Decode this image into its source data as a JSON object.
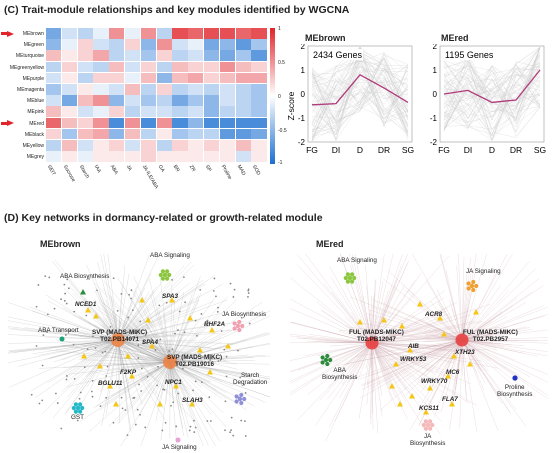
{
  "section_c": {
    "title": "(C) Trait-module relationships and key modules identified by WGCNA"
  },
  "heatmap": {
    "rows": [
      "MEbrown",
      "MEgreen",
      "MEturquoise",
      "MEgreenyellow",
      "MEpurple",
      "MEmagenta",
      "MEblue",
      "MEpink",
      "MEred",
      "MEblack",
      "MEyellow",
      "MEgrey"
    ],
    "columns": [
      "SEIT",
      "Sucrose",
      "Starch",
      "IAA",
      "ABA",
      "JA",
      "JA-ILE/ABA",
      "GA",
      "BR",
      "ZR",
      "SP",
      "Proline",
      "MAD",
      "SOD"
    ],
    "colorbar_ticks": [
      "1",
      "0.5",
      "0",
      "-0.5",
      "-1"
    ],
    "highlighted_rows": [
      "MEbrown",
      "MEred"
    ],
    "colors": {
      "positive": "#e0242a",
      "negative": "#1b6fd1",
      "neutral": "#ffffff",
      "arrow": "#e0242a"
    }
  },
  "charts": {
    "x_ticks": [
      "FG",
      "DI",
      "D",
      "DR",
      "SG"
    ],
    "y_ticks": [
      "2",
      "1",
      "0",
      "-1",
      "-2"
    ],
    "ylabel": "Z-score",
    "line_color": "#b03a7a",
    "band_color": "#c8c8c8"
  },
  "chart_data": [
    {
      "type": "line",
      "title": "MEbrown",
      "annotation": "2434 Genes",
      "x": [
        "FG",
        "DI",
        "D",
        "DR",
        "SG"
      ],
      "ylim": [
        -2,
        2
      ],
      "series": [
        {
          "values": [
            -0.45,
            -0.4,
            0.8,
            0.25,
            -0.35
          ]
        }
      ]
    },
    {
      "type": "line",
      "title": "MEred",
      "annotation": "1195 Genes",
      "x": [
        "FG",
        "DI",
        "D",
        "DR",
        "SG"
      ],
      "ylim": [
        -2,
        2
      ],
      "series": [
        {
          "values": [
            0.0,
            0.15,
            -0.35,
            -0.25,
            1.0
          ]
        }
      ]
    }
  ],
  "section_d": {
    "title": "(D) Key networks in dormancy-related or growth-related module"
  },
  "network_brown": {
    "title": "MEbrown",
    "groups": {
      "aba_signaling": "ABA Signaling",
      "aba_biosynthesis": "ABA Biosynthesis",
      "aba_transport": "ABA Transport",
      "ja_biosynthesis": "JA Biosynthesis",
      "starch_degradation": "Starch\nDegradation",
      "gst": "GST",
      "ja_signaling": "JA Signaling"
    },
    "hubs": {
      "svp1": "SVP (MADS-MIKC)\nT02.PB14071",
      "svp2": "SVP (MADS-MIKC)\nT02.PB19016"
    },
    "genes": {
      "nced1": "NCED1",
      "spa3": "SPA3",
      "rhf2a": "RHF2A",
      "spa4": "SPA4",
      "f2kp": "F2KP",
      "bglu11": "BGLU11",
      "npc1": "NPC1",
      "slah3": "SLAH3"
    },
    "colors": {
      "aba_signaling": "#8cc63f",
      "aba_biosynthesis": "#2e8b3d",
      "aba_transport": "#1aa37a",
      "ja_biosynthesis": "#f0a0b0",
      "starch": "#9090d8",
      "gst": "#22b8c8",
      "ja_signaling": "#e8a0d8",
      "hub": "#f08040",
      "gene": "#f5c518"
    }
  },
  "network_red": {
    "title": "MEred",
    "groups": {
      "aba_signaling": "ABA Signaling",
      "ja_signaling": "JA Signaling",
      "aba_biosynthesis": "ABA\nBiosynthesis",
      "proline_biosynthesis": "Proline\nBiosynthesis",
      "ja_biosynthesis": "JA\nBiosynthesis"
    },
    "hubs": {
      "ful1": "FUL (MADS-MIKC)\nT02.PB12047",
      "ful2": "FUL (MADS-MIKC)\nT02.PB2957"
    },
    "genes": {
      "acr8": "ACR8",
      "aib": "AIB",
      "xth23": "XTH23",
      "wrky53": "WRKY53",
      "mc6": "MC6",
      "wrky70": "WRKY70",
      "fla7": "FLA7",
      "kcs11": "KCS11"
    },
    "colors": {
      "aba_signaling": "#8cc63f",
      "ja_signaling": "#f0a030",
      "aba_biosynthesis": "#2e8b3d",
      "proline": "#2030c8",
      "ja_biosynthesis": "#f5b8b8",
      "hub": "#e84040",
      "gene": "#f5c518"
    }
  }
}
